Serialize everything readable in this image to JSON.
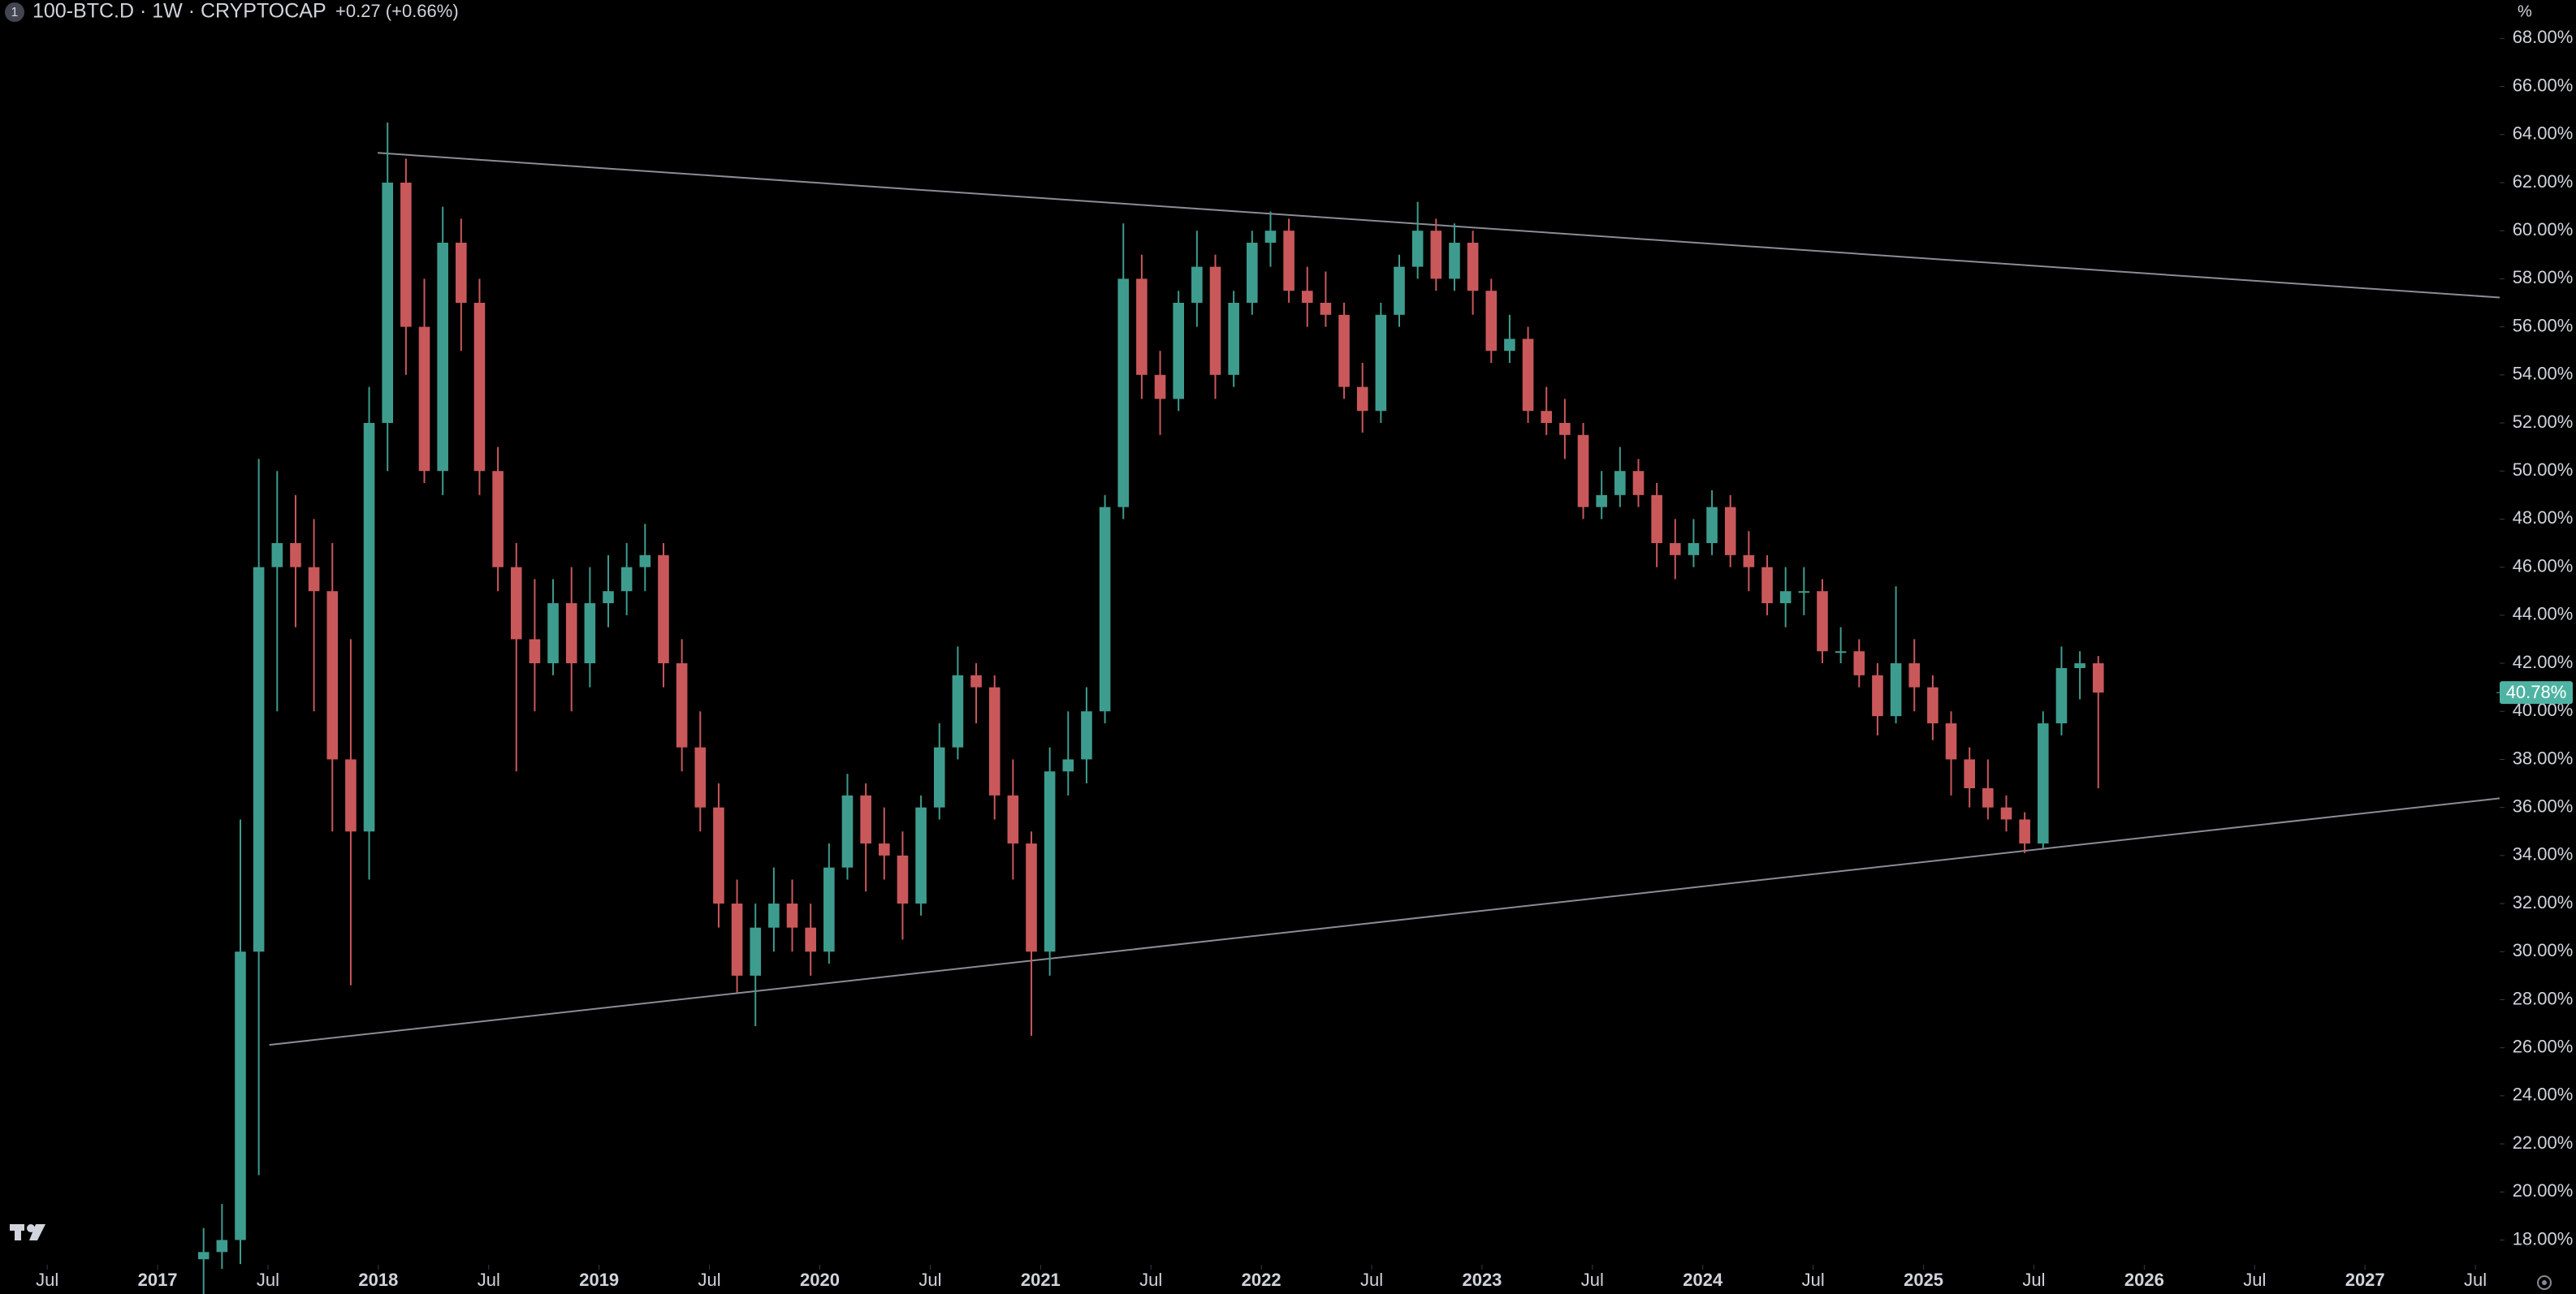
{
  "header": {
    "badge": "1",
    "title": "100-BTC.D · 1W · CRYPTOCAP",
    "change": "+0.27 (+0.66%)",
    "scale_button": "%"
  },
  "chart_data": {
    "type": "candlestick",
    "x": [
      "2017-03",
      "2017-04",
      "2017-05",
      "2017-06",
      "2017-07",
      "2017-08",
      "2017-09",
      "2017-10",
      "2017-11",
      "2017-12",
      "2018-01",
      "2018-02",
      "2018-03",
      "2018-04",
      "2018-05",
      "2018-06",
      "2018-07",
      "2018-08",
      "2018-09",
      "2018-10",
      "2018-11",
      "2018-12",
      "2019-01",
      "2019-02",
      "2019-03",
      "2019-04",
      "2019-05",
      "2019-06",
      "2019-07",
      "2019-08",
      "2019-09",
      "2019-10",
      "2019-11",
      "2019-12",
      "2020-01",
      "2020-02",
      "2020-03",
      "2020-04",
      "2020-05",
      "2020-06",
      "2020-07",
      "2020-08",
      "2020-09",
      "2020-10",
      "2020-11",
      "2020-12",
      "2021-01",
      "2021-02",
      "2021-03",
      "2021-04",
      "2021-05",
      "2021-06",
      "2021-07",
      "2021-08",
      "2021-09",
      "2021-10",
      "2021-11",
      "2021-12",
      "2022-01",
      "2022-02",
      "2022-03",
      "2022-04",
      "2022-05",
      "2022-06",
      "2022-07",
      "2022-08",
      "2022-09",
      "2022-10",
      "2022-11",
      "2022-12",
      "2023-01",
      "2023-02",
      "2023-03",
      "2023-04",
      "2023-05",
      "2023-06",
      "2023-07",
      "2023-08",
      "2023-09",
      "2023-10",
      "2023-11",
      "2023-12",
      "2024-01",
      "2024-02",
      "2024-03",
      "2024-04",
      "2024-05",
      "2024-06",
      "2024-07",
      "2024-08",
      "2024-09",
      "2024-10",
      "2024-11",
      "2024-12",
      "2025-01",
      "2025-02",
      "2025-03",
      "2025-04",
      "2025-05",
      "2025-06",
      "2025-07",
      "2025-08",
      "2025-09",
      "2025-10"
    ],
    "open": [
      17.2,
      17.5,
      18,
      30,
      46,
      47,
      46,
      45,
      38,
      35,
      52,
      62,
      56,
      50,
      59.5,
      57,
      50,
      46,
      43,
      42,
      44.5,
      42,
      44.5,
      45,
      46,
      46.5,
      42,
      38.5,
      36,
      32,
      29,
      31,
      32,
      31,
      30,
      33.5,
      36.5,
      34.5,
      34,
      32,
      36,
      38.5,
      41.5,
      41,
      36.5,
      34.5,
      30,
      37.5,
      38,
      40,
      48.5,
      58,
      54,
      53,
      57,
      58.5,
      54,
      57,
      59.5,
      60,
      57.5,
      57,
      56.5,
      53.5,
      52.5,
      56.5,
      58.5,
      60,
      58,
      59.5,
      57.5,
      55,
      55.5,
      52.5,
      52,
      51.5,
      48.5,
      49,
      50,
      49,
      47,
      46.5,
      47,
      48.5,
      46.5,
      46,
      44.5,
      45,
      45,
      42.5,
      42.5,
      41.5,
      39.8,
      42,
      41,
      39.5,
      38,
      36.8,
      36,
      35.5,
      34.5,
      39.5,
      41.8,
      42
    ],
    "high": [
      18.5,
      19.5,
      35.5,
      50.5,
      50,
      49,
      48,
      47,
      43,
      53.5,
      64.5,
      63,
      58,
      61,
      60.5,
      58,
      51,
      47,
      45.5,
      45.5,
      46,
      46,
      46.5,
      47,
      47.8,
      47,
      43,
      40,
      37,
      33,
      32,
      33.5,
      33,
      32,
      34.5,
      37.4,
      37,
      36,
      35,
      36.5,
      39.5,
      42.7,
      42,
      41.5,
      38,
      35,
      38.5,
      40,
      41,
      49,
      60.3,
      59,
      55,
      57.5,
      60,
      59,
      57.5,
      60,
      60.8,
      60.5,
      58.5,
      58.3,
      57,
      54.5,
      57,
      59,
      61.2,
      60.5,
      60.3,
      60,
      58,
      56.5,
      56,
      53.5,
      53,
      52,
      50,
      51,
      50.5,
      49.5,
      48,
      48,
      49.2,
      49,
      47.5,
      46.5,
      46,
      46,
      45.5,
      43.5,
      43,
      42,
      45.2,
      43,
      41.5,
      40,
      38.5,
      38,
      36.5,
      35.8,
      40,
      42.7,
      42.5,
      42.3
    ],
    "low": [
      15.5,
      16.8,
      17,
      20.7,
      40,
      43.5,
      40,
      35,
      28.6,
      33,
      50,
      54,
      49.5,
      49,
      55,
      49,
      45,
      37.5,
      40,
      41.5,
      40,
      41,
      43.5,
      44,
      45,
      41,
      37.5,
      35,
      31,
      28.3,
      26.9,
      30,
      30,
      29,
      29.5,
      33,
      32.5,
      33,
      30.5,
      31.5,
      35.5,
      38,
      39.5,
      35.5,
      33,
      26.5,
      29,
      36.5,
      37,
      39.5,
      48,
      53,
      51.5,
      52.5,
      56,
      53,
      53.5,
      56.5,
      58.5,
      57,
      56,
      56,
      53,
      51.6,
      52,
      56,
      58,
      57.5,
      57.5,
      56.5,
      54.5,
      54.5,
      52,
      51.5,
      50.5,
      48,
      48,
      48.5,
      48.5,
      46,
      45.5,
      46,
      46.5,
      46,
      45,
      44,
      43.5,
      44,
      42,
      42,
      41,
      39,
      39.5,
      40,
      38.8,
      36.5,
      36,
      35.5,
      35,
      34.1,
      34.3,
      39,
      40.5,
      36.8
    ],
    "close": [
      17.5,
      18,
      30,
      46,
      47,
      46,
      45,
      38,
      35,
      52,
      62,
      56,
      50,
      59.5,
      57,
      50,
      46,
      43,
      42,
      44.5,
      42,
      44.5,
      45,
      46,
      46.5,
      42,
      38.5,
      36,
      32,
      29,
      31,
      32,
      31,
      30,
      33.5,
      36.5,
      34.5,
      34,
      32,
      36,
      38.5,
      41.5,
      41,
      36.5,
      34.5,
      30,
      37.5,
      38,
      40,
      48.5,
      58,
      54,
      53,
      57,
      58.5,
      54,
      57,
      59.5,
      60,
      57.5,
      57,
      56.5,
      53.5,
      52.5,
      56.5,
      58.5,
      60,
      58,
      59.5,
      57.5,
      55,
      55.5,
      52.5,
      52,
      51.5,
      48.5,
      49,
      50,
      49,
      47,
      46.5,
      47,
      48.5,
      46.5,
      46,
      44.5,
      45,
      45,
      42.5,
      42.5,
      41.5,
      39.8,
      42,
      41,
      39.5,
      38,
      36.8,
      36,
      35.5,
      34.5,
      39.5,
      41.8,
      42,
      40.78
    ],
    "last_label": "40.78%",
    "up_color": "#3e9c8e",
    "down_color": "#c9585b",
    "last_label_color": "#4eb3a2",
    "trendlines": [
      {
        "x": [
          2017.997,
          2027.61
        ],
        "y": [
          63.24,
          57.22
        ]
      },
      {
        "x": [
          2017.506,
          2027.61
        ],
        "y": [
          26.12,
          36.38
        ]
      }
    ],
    "xlim": [
      2016.286,
      2027.61
    ],
    "xticks": [
      {
        "value": 2016.5,
        "label": "Jul"
      },
      2017,
      {
        "value": 2017.5,
        "label": "Jul"
      },
      2018,
      {
        "value": 2018.5,
        "label": "Jul"
      },
      2019,
      {
        "value": 2019.5,
        "label": "Jul"
      },
      2020,
      {
        "value": 2020.5,
        "label": "Jul"
      },
      2021,
      {
        "value": 2021.5,
        "label": "Jul"
      },
      2022,
      {
        "value": 2022.5,
        "label": "Jul"
      },
      2023,
      {
        "value": 2023.5,
        "label": "Jul"
      },
      2024,
      {
        "value": 2024.5,
        "label": "Jul"
      },
      2025,
      {
        "value": 2025.5,
        "label": "Jul"
      },
      2026,
      {
        "value": 2026.5,
        "label": "Jul"
      },
      2027,
      {
        "value": 2027.5,
        "label": "Jul"
      }
    ],
    "ylim": [
      16.97,
      69.6
    ],
    "yticks": [
      {
        "value": 18,
        "label": "18.00%"
      },
      {
        "value": 20,
        "label": "20.00%"
      },
      {
        "value": 22,
        "label": "22.00%"
      },
      {
        "value": 24,
        "label": "24.00%"
      },
      {
        "value": 26,
        "label": "26.00%"
      },
      {
        "value": 28,
        "label": "28.00%"
      },
      {
        "value": 30,
        "label": "30.00%"
      },
      {
        "value": 32,
        "label": "32.00%"
      },
      {
        "value": 34,
        "label": "34.00%"
      },
      {
        "value": 36,
        "label": "36.00%"
      },
      {
        "value": 38,
        "label": "38.00%"
      },
      {
        "value": 40,
        "label": "40.00%"
      },
      {
        "value": 42,
        "label": "42.00%"
      },
      {
        "value": 44,
        "label": "44.00%"
      },
      {
        "value": 46,
        "label": "46.00%"
      },
      {
        "value": 48,
        "label": "48.00%"
      },
      {
        "value": 50,
        "label": "50.00%"
      },
      {
        "value": 52,
        "label": "52.00%"
      },
      {
        "value": 54,
        "label": "54.00%"
      },
      {
        "value": 56,
        "label": "56.00%"
      },
      {
        "value": 58,
        "label": "58.00%"
      },
      {
        "value": 60,
        "label": "60.00%"
      },
      {
        "value": 62,
        "label": "62.00%"
      },
      {
        "value": 64,
        "label": "64.00%"
      },
      {
        "value": 66,
        "label": "66.00%"
      },
      {
        "value": 68,
        "label": "68.00%"
      }
    ]
  }
}
